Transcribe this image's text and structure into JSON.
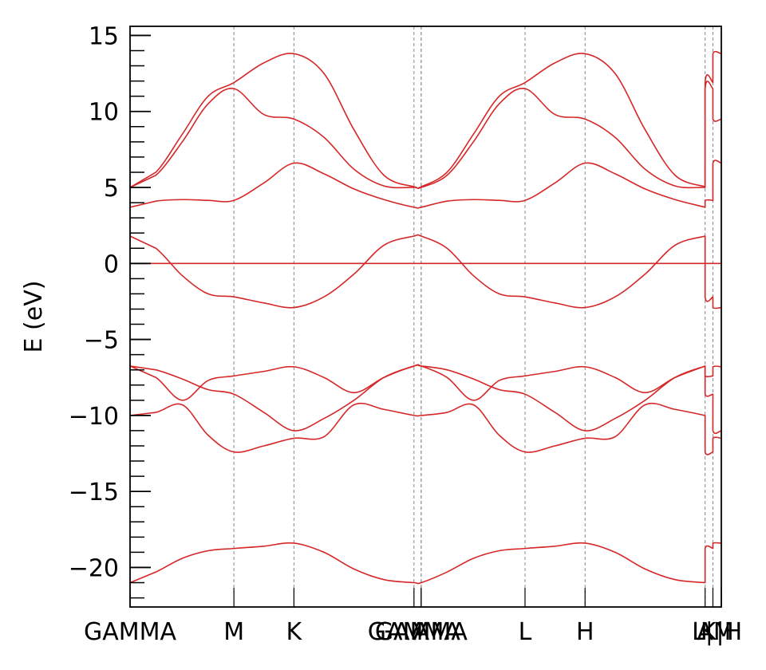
{
  "chart_data": {
    "type": "line",
    "title": "",
    "xlabel": "",
    "ylabel": "E (eV)",
    "ylim": [
      -22.6,
      15.6
    ],
    "yticks": [
      15,
      10,
      5,
      0,
      -5,
      -10,
      -15,
      -20
    ],
    "ytick_labels": [
      "15",
      "10",
      "5",
      "0",
      "−5",
      "−10",
      "−15",
      "−20"
    ],
    "x_range": [
      0,
      9.85
    ],
    "kpoints": [
      {
        "label": "GAMMA",
        "x": 0.0
      },
      {
        "label": "M",
        "x": 1.73
      },
      {
        "label": "K",
        "x": 2.73
      },
      {
        "label": "GAMMA",
        "x": 4.73
      },
      {
        "label": "A",
        "x": 4.85
      },
      {
        "label": "GAMMA",
        "x": 4.85
      },
      {
        "label": "L",
        "x": 6.58
      },
      {
        "label": "H",
        "x": 7.58
      },
      {
        "label": "A",
        "x": 9.58
      },
      {
        "label": "L|M",
        "x": 9.71
      },
      {
        "label": "K|H",
        "x": 9.85
      }
    ],
    "color": "#d62728",
    "series": [
      {
        "points": [
          [
            0,
            -21.0
          ],
          [
            0.43,
            -20.3
          ],
          [
            0.87,
            -19.4
          ],
          [
            1.3,
            -18.9
          ],
          [
            1.73,
            -18.75
          ],
          [
            2.23,
            -18.6
          ],
          [
            2.73,
            -18.4
          ],
          [
            3.23,
            -19.0
          ],
          [
            3.73,
            -20.1
          ],
          [
            4.23,
            -20.8
          ],
          [
            4.73,
            -21.0
          ],
          [
            4.85,
            -21.0
          ],
          [
            5.28,
            -20.3
          ],
          [
            5.72,
            -19.4
          ],
          [
            6.15,
            -18.9
          ],
          [
            6.58,
            -18.75
          ],
          [
            7.08,
            -18.6
          ],
          [
            7.58,
            -18.4
          ],
          [
            8.08,
            -19.0
          ],
          [
            8.58,
            -20.1
          ],
          [
            9.08,
            -20.8
          ],
          [
            9.58,
            -21.0
          ],
          [
            9.58,
            -18.75
          ],
          [
            9.71,
            -18.75
          ],
          [
            9.71,
            -18.4
          ],
          [
            9.85,
            -18.4
          ]
        ]
      },
      {
        "points": [
          [
            0,
            -6.75
          ],
          [
            0.43,
            -7.0
          ],
          [
            0.87,
            -7.6
          ],
          [
            1.3,
            -8.3
          ],
          [
            1.73,
            -8.6
          ],
          [
            2.23,
            -9.8
          ],
          [
            2.73,
            -11.0
          ],
          [
            3.23,
            -10.2
          ],
          [
            3.73,
            -9.0
          ],
          [
            4.23,
            -7.5
          ],
          [
            4.73,
            -6.75
          ],
          [
            4.85,
            -6.75
          ],
          [
            5.28,
            -7.0
          ],
          [
            5.72,
            -7.6
          ],
          [
            6.15,
            -8.3
          ],
          [
            6.58,
            -8.6
          ],
          [
            7.08,
            -9.8
          ],
          [
            7.58,
            -11.0
          ],
          [
            8.08,
            -10.2
          ],
          [
            8.58,
            -9.0
          ],
          [
            9.08,
            -7.5
          ],
          [
            9.58,
            -6.75
          ],
          [
            9.58,
            -8.6
          ],
          [
            9.71,
            -8.6
          ],
          [
            9.71,
            -11.0
          ],
          [
            9.85,
            -11.0
          ]
        ]
      },
      {
        "points": [
          [
            0,
            -6.75
          ],
          [
            0.43,
            -7.5
          ],
          [
            0.87,
            -9.0
          ],
          [
            1.3,
            -7.7
          ],
          [
            1.73,
            -7.4
          ],
          [
            2.23,
            -7.1
          ],
          [
            2.73,
            -6.8
          ],
          [
            3.23,
            -7.5
          ],
          [
            3.73,
            -8.5
          ],
          [
            4.23,
            -7.5
          ],
          [
            4.73,
            -6.75
          ],
          [
            4.85,
            -6.75
          ],
          [
            5.28,
            -7.5
          ],
          [
            5.72,
            -9.0
          ],
          [
            6.15,
            -7.7
          ],
          [
            6.58,
            -7.4
          ],
          [
            7.08,
            -7.1
          ],
          [
            7.58,
            -6.8
          ],
          [
            8.08,
            -7.5
          ],
          [
            8.58,
            -8.5
          ],
          [
            9.08,
            -7.5
          ],
          [
            9.58,
            -6.75
          ],
          [
            9.58,
            -7.4
          ],
          [
            9.71,
            -7.4
          ],
          [
            9.71,
            -6.8
          ],
          [
            9.85,
            -6.8
          ]
        ]
      },
      {
        "points": [
          [
            0,
            -10.0
          ],
          [
            0.43,
            -9.8
          ],
          [
            0.87,
            -9.3
          ],
          [
            1.3,
            -11.3
          ],
          [
            1.73,
            -12.4
          ],
          [
            2.23,
            -12.0
          ],
          [
            2.73,
            -11.5
          ],
          [
            3.23,
            -11.4
          ],
          [
            3.73,
            -9.3
          ],
          [
            4.23,
            -9.6
          ],
          [
            4.73,
            -10.0
          ],
          [
            4.85,
            -10.0
          ],
          [
            5.28,
            -9.8
          ],
          [
            5.72,
            -9.3
          ],
          [
            6.15,
            -11.3
          ],
          [
            6.58,
            -12.4
          ],
          [
            7.08,
            -12.0
          ],
          [
            7.58,
            -11.5
          ],
          [
            8.08,
            -11.4
          ],
          [
            8.58,
            -9.3
          ],
          [
            9.08,
            -9.6
          ],
          [
            9.58,
            -10.0
          ],
          [
            9.58,
            -12.4
          ],
          [
            9.71,
            -12.4
          ],
          [
            9.71,
            -11.5
          ],
          [
            9.85,
            -11.5
          ]
        ]
      },
      {
        "points": [
          [
            0,
            1.8
          ],
          [
            0.43,
            1.0
          ],
          [
            0.87,
            -0.8
          ],
          [
            1.3,
            -2.0
          ],
          [
            1.73,
            -2.2
          ],
          [
            2.23,
            -2.6
          ],
          [
            2.73,
            -2.9
          ],
          [
            3.23,
            -2.2
          ],
          [
            3.73,
            -0.7
          ],
          [
            4.23,
            1.2
          ],
          [
            4.73,
            1.8
          ],
          [
            4.85,
            1.8
          ],
          [
            5.28,
            1.0
          ],
          [
            5.72,
            -0.8
          ],
          [
            6.15,
            -2.0
          ],
          [
            6.58,
            -2.2
          ],
          [
            7.08,
            -2.6
          ],
          [
            7.58,
            -2.9
          ],
          [
            8.08,
            -2.2
          ],
          [
            8.58,
            -0.7
          ],
          [
            9.08,
            1.2
          ],
          [
            9.58,
            1.8
          ],
          [
            9.58,
            -2.2
          ],
          [
            9.71,
            -2.2
          ],
          [
            9.71,
            -2.9
          ],
          [
            9.85,
            -2.9
          ]
        ]
      },
      {
        "points": [
          [
            0,
            0
          ],
          [
            9.85,
            0
          ]
        ]
      },
      {
        "points": [
          [
            0,
            3.7
          ],
          [
            0.43,
            4.1
          ],
          [
            0.87,
            4.2
          ],
          [
            1.3,
            4.15
          ],
          [
            1.73,
            4.15
          ],
          [
            2.23,
            5.3
          ],
          [
            2.73,
            6.6
          ],
          [
            3.23,
            5.9
          ],
          [
            3.73,
            4.9
          ],
          [
            4.23,
            4.2
          ],
          [
            4.73,
            3.7
          ],
          [
            4.85,
            3.7
          ],
          [
            5.28,
            4.1
          ],
          [
            5.72,
            4.2
          ],
          [
            6.15,
            4.15
          ],
          [
            6.58,
            4.15
          ],
          [
            7.08,
            5.3
          ],
          [
            7.58,
            6.6
          ],
          [
            8.08,
            5.9
          ],
          [
            8.58,
            4.9
          ],
          [
            9.08,
            4.2
          ],
          [
            9.58,
            3.7
          ],
          [
            9.58,
            4.15
          ],
          [
            9.71,
            4.15
          ],
          [
            9.71,
            6.6
          ],
          [
            9.85,
            6.6
          ]
        ]
      },
      {
        "points": [
          [
            0,
            5.0
          ],
          [
            0.43,
            5.8
          ],
          [
            0.87,
            8.0
          ],
          [
            1.3,
            10.5
          ],
          [
            1.73,
            11.5
          ],
          [
            2.23,
            9.8
          ],
          [
            2.73,
            9.5
          ],
          [
            3.23,
            8.3
          ],
          [
            3.73,
            6.2
          ],
          [
            4.23,
            5.1
          ],
          [
            4.73,
            5.0
          ],
          [
            4.85,
            5.0
          ],
          [
            5.28,
            5.8
          ],
          [
            5.72,
            8.0
          ],
          [
            6.15,
            10.5
          ],
          [
            6.58,
            11.5
          ],
          [
            7.08,
            9.8
          ],
          [
            7.58,
            9.5
          ],
          [
            8.08,
            8.3
          ],
          [
            8.58,
            6.2
          ],
          [
            9.08,
            5.1
          ],
          [
            9.58,
            5.0
          ],
          [
            9.58,
            11.5
          ],
          [
            9.71,
            11.5
          ],
          [
            9.71,
            9.5
          ],
          [
            9.85,
            9.5
          ]
        ]
      },
      {
        "points": [
          [
            0,
            5.0
          ],
          [
            0.43,
            6.0
          ],
          [
            0.87,
            8.5
          ],
          [
            1.3,
            11.0
          ],
          [
            1.73,
            11.9
          ],
          [
            2.23,
            13.2
          ],
          [
            2.73,
            13.8
          ],
          [
            3.23,
            12.5
          ],
          [
            3.73,
            8.8
          ],
          [
            4.23,
            5.8
          ],
          [
            4.73,
            5.05
          ],
          [
            4.85,
            5.05
          ],
          [
            5.28,
            6.0
          ],
          [
            5.72,
            8.5
          ],
          [
            6.15,
            11.0
          ],
          [
            6.58,
            11.9
          ],
          [
            7.08,
            13.2
          ],
          [
            7.58,
            13.8
          ],
          [
            8.08,
            12.5
          ],
          [
            8.58,
            8.8
          ],
          [
            9.08,
            5.8
          ],
          [
            9.58,
            5.05
          ],
          [
            9.58,
            11.9
          ],
          [
            9.71,
            11.9
          ],
          [
            9.71,
            13.8
          ],
          [
            9.85,
            13.8
          ]
        ]
      }
    ]
  }
}
